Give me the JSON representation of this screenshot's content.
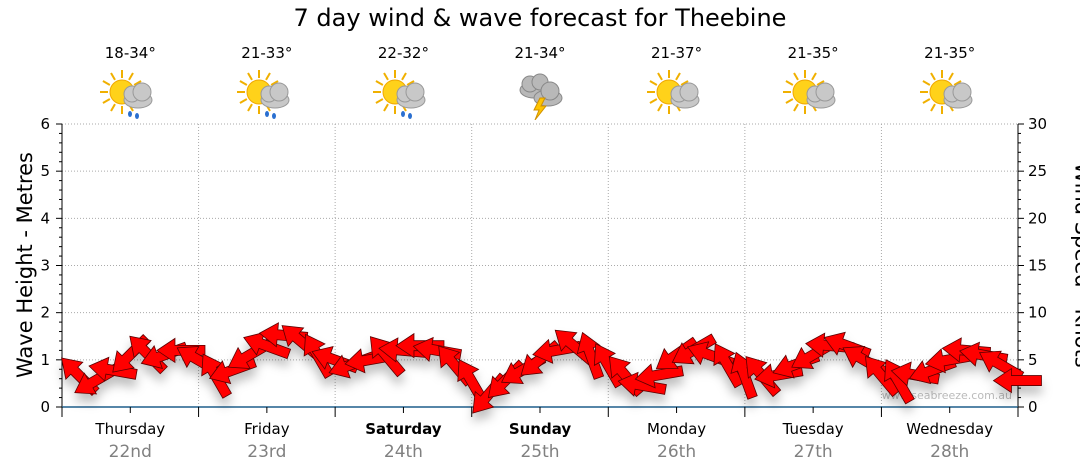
{
  "title": "7 day wind & wave forecast for Theebine",
  "watermark": "www.seabreeze.com.au",
  "days": [
    {
      "day": "Thursday",
      "date": "22nd",
      "temp": "18-34°",
      "icon": "sun-cloud-rain-icon",
      "bold": false
    },
    {
      "day": "Friday",
      "date": "23rd",
      "temp": "21-33°",
      "icon": "sun-cloud-rain-icon",
      "bold": false
    },
    {
      "day": "Saturday",
      "date": "24th",
      "temp": "22-32°",
      "icon": "sun-cloud-rain-icon",
      "bold": true
    },
    {
      "day": "Sunday",
      "date": "25th",
      "temp": "21-34°",
      "icon": "storm-icon",
      "bold": true
    },
    {
      "day": "Monday",
      "date": "26th",
      "temp": "21-37°",
      "icon": "sun-cloud-icon",
      "bold": false
    },
    {
      "day": "Tuesday",
      "date": "27th",
      "temp": "21-35°",
      "icon": "sun-cloud-icon",
      "bold": false
    },
    {
      "day": "Wednesday",
      "date": "28th",
      "temp": "21-35°",
      "icon": "sun-cloud-icon",
      "bold": false
    }
  ],
  "chart_data": {
    "type": "scatter",
    "title": "7 day wind & wave forecast for Theebine",
    "ylabel": "Wave Height - Metres",
    "y2label": "Wind Speed - Knots",
    "ylim": [
      0,
      6
    ],
    "y2lim": [
      0,
      30
    ],
    "yticks": [
      "0",
      "1",
      "2",
      "3",
      "4",
      "5",
      "6"
    ],
    "y2ticks": [
      "0",
      "5",
      "10",
      "15",
      "20",
      "25",
      "30"
    ],
    "x_interval_hours": 3,
    "wind_knots": [
      3.4,
      2.8,
      3.9,
      5.5,
      5.7,
      5.5,
      6.0,
      5.0,
      3.4,
      3.9,
      5.5,
      6.5,
      7.6,
      7.0,
      5.5,
      5.0,
      4.5,
      5.0,
      5.5,
      6.0,
      6.5,
      6.0,
      4.5,
      2.8,
      1.3,
      2.8,
      3.9,
      5.0,
      6.0,
      6.5,
      5.5,
      4.5,
      3.4,
      2.3,
      3.4,
      5.5,
      6.0,
      5.5,
      4.5,
      3.4,
      3.4,
      3.4,
      4.5,
      5.5,
      6.5,
      6.5,
      5.0,
      3.4,
      2.8,
      3.4,
      3.9,
      5.0,
      6.0,
      5.5,
      4.5,
      2.8
    ],
    "wind_from_deg": [
      135,
      60,
      100,
      45,
      135,
      70,
      90,
      120,
      150,
      70,
      60,
      110,
      95,
      130,
      150,
      110,
      70,
      80,
      140,
      95,
      90,
      100,
      140,
      150,
      40,
      45,
      60,
      50,
      80,
      130,
      160,
      150,
      140,
      100,
      80,
      55,
      60,
      110,
      150,
      160,
      140,
      80,
      70,
      60,
      95,
      110,
      120,
      140,
      150,
      100,
      70,
      80,
      95,
      100,
      120,
      90
    ]
  }
}
